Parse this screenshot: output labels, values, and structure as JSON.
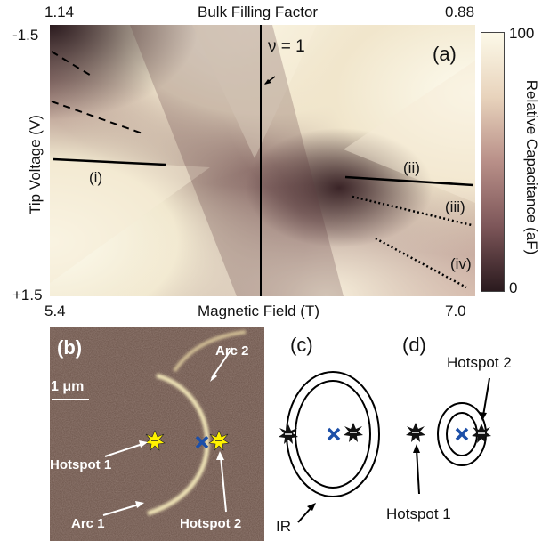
{
  "panel_a": {
    "top_axis_title": "Bulk Filling Factor",
    "top_left_value": "1.14",
    "top_right_value": "0.88",
    "bottom_axis_title": "Magnetic Field (T)",
    "bottom_left_value": "5.4",
    "bottom_right_value": "7.0",
    "y_axis_title": "Tip Voltage (V)",
    "y_top_value": "-1.5",
    "y_bottom_value": "+1.5",
    "panel_label": "(a)",
    "nu_label": "ν = 1",
    "line_labels": [
      "(i)",
      "(ii)",
      "(iii)",
      "(iv)"
    ],
    "colorbar_title": "Relative Capacitance (aF)",
    "colorbar_max": "100",
    "colorbar_min": "0",
    "colors": {
      "dark": "#2a1a1e",
      "mid": "#a07a78",
      "light": "#fbf7e6"
    }
  },
  "panel_b": {
    "panel_label": "(b)",
    "scale_bar": "1 μm",
    "arc1": "Arc 1",
    "arc2": "Arc 2",
    "hotspot1": "Hotspot 1",
    "hotspot2": "Hotspot 2"
  },
  "panel_c": {
    "panel_label": "(c)",
    "ir_label": "IR"
  },
  "panel_d": {
    "panel_label": "(d)",
    "hotspot1": "Hotspot 1",
    "hotspot2": "Hotspot 2"
  }
}
